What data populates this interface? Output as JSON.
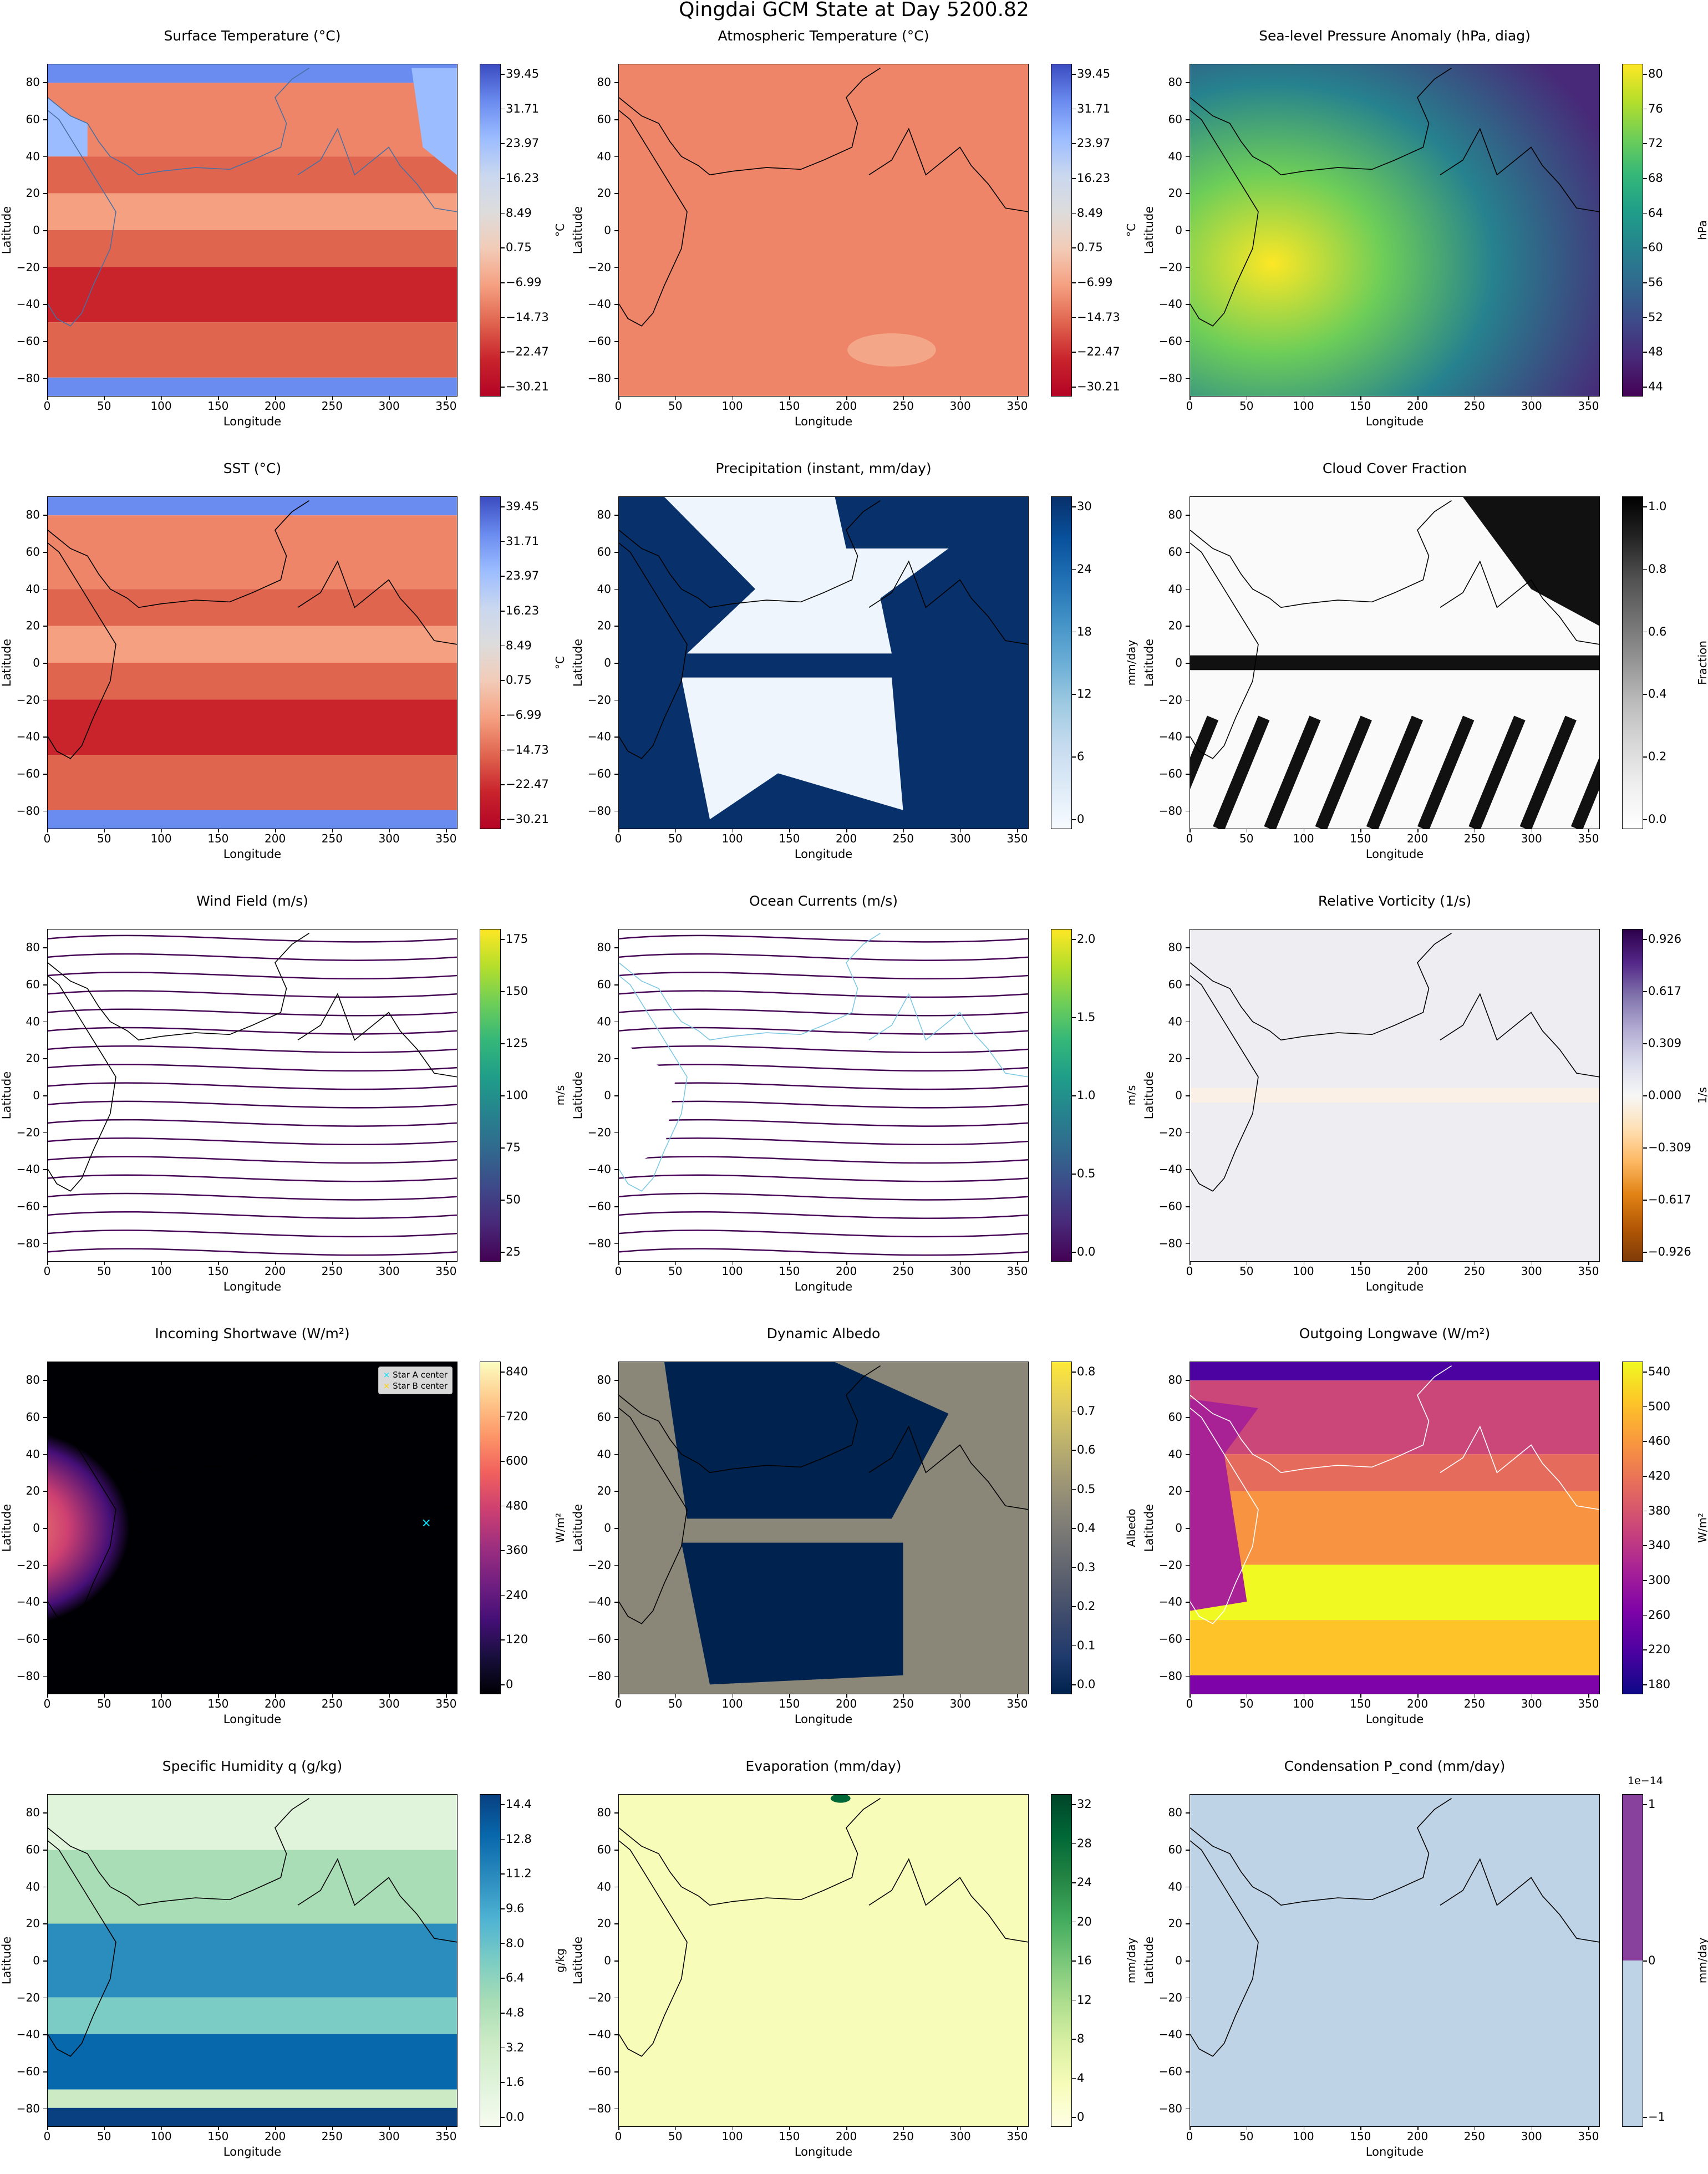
{
  "suptitle": "Qingdai GCM State at Day 5200.82",
  "panels": [
    {
      "title": "Surface Temperature (°C)",
      "xlabel": "Longitude",
      "ylabel": "Latitude",
      "cbar_label": "°C",
      "cbar_ticks": [
        "39.45",
        "31.71",
        "23.97",
        "16.23",
        "8.49",
        "0.75",
        "−6.99",
        "−14.73",
        "−22.47",
        "−30.21"
      ],
      "cmap": "coolwarm"
    },
    {
      "title": "Atmospheric Temperature (°C)",
      "xlabel": "Longitude",
      "ylabel": "Latitude",
      "cbar_label": "°C",
      "cbar_ticks": [
        "39.45",
        "31.71",
        "23.97",
        "16.23",
        "8.49",
        "0.75",
        "−6.99",
        "−14.73",
        "−22.47",
        "−30.21"
      ],
      "cmap": "coolwarm"
    },
    {
      "title": "Sea-level Pressure Anomaly (hPa, diag)",
      "xlabel": "Longitude",
      "ylabel": "Latitude",
      "cbar_label": "hPa",
      "cbar_ticks": [
        "80",
        "76",
        "72",
        "68",
        "64",
        "60",
        "56",
        "52",
        "48",
        "44"
      ],
      "cmap": "viridis"
    },
    {
      "title": "SST (°C)",
      "xlabel": "Longitude",
      "ylabel": "Latitude",
      "cbar_label": "°C",
      "cbar_ticks": [
        "39.45",
        "31.71",
        "23.97",
        "16.23",
        "8.49",
        "0.75",
        "−6.99",
        "−14.73",
        "−22.47",
        "−30.21"
      ],
      "cmap": "coolwarm"
    },
    {
      "title": "Precipitation (instant, mm/day)",
      "xlabel": "Longitude",
      "ylabel": "Latitude",
      "cbar_label": "mm/day",
      "cbar_ticks": [
        "30",
        "24",
        "18",
        "12",
        "6",
        "0"
      ],
      "cmap": "blues"
    },
    {
      "title": "Cloud Cover Fraction",
      "xlabel": "Longitude",
      "ylabel": "Latitude",
      "cbar_label": "Fraction",
      "cbar_ticks": [
        "1.0",
        "0.8",
        "0.6",
        "0.4",
        "0.2",
        "0.0"
      ],
      "cmap": "greys"
    },
    {
      "title": "Wind Field (m/s)",
      "xlabel": "Longitude",
      "ylabel": "Latitude",
      "cbar_label": "m/s",
      "cbar_ticks": [
        "175",
        "150",
        "125",
        "100",
        "75",
        "50",
        "25"
      ],
      "cmap": "viridis"
    },
    {
      "title": "Ocean Currents (m/s)",
      "xlabel": "Longitude",
      "ylabel": "Latitude",
      "cbar_label": "m/s",
      "cbar_ticks": [
        "2.0",
        "1.5",
        "1.0",
        "0.5",
        "0.0"
      ],
      "cmap": "viridis"
    },
    {
      "title": "Relative Vorticity (1/s)",
      "xlabel": "Longitude",
      "ylabel": "Latitude",
      "cbar_label": "1/s",
      "cbar_ticks": [
        "0.926",
        "0.617",
        "0.309",
        "0.000",
        "−0.309",
        "−0.617",
        "−0.926"
      ],
      "cmap": "puor"
    },
    {
      "title": "Incoming Shortwave (W/m²)",
      "xlabel": "Longitude",
      "ylabel": "Latitude",
      "cbar_label": "W/m²",
      "cbar_ticks": [
        "840",
        "720",
        "600",
        "480",
        "360",
        "240",
        "120",
        "0"
      ],
      "cmap": "magma",
      "legend": [
        "Star A center",
        "Star B center"
      ]
    },
    {
      "title": "Dynamic Albedo",
      "xlabel": "Longitude",
      "ylabel": "Latitude",
      "cbar_label": "Albedo",
      "cbar_ticks": [
        "0.8",
        "0.7",
        "0.6",
        "0.5",
        "0.4",
        "0.3",
        "0.2",
        "0.1",
        "0.0"
      ],
      "cmap": "cividis"
    },
    {
      "title": "Outgoing Longwave (W/m²)",
      "xlabel": "Longitude",
      "ylabel": "Latitude",
      "cbar_label": "W/m²",
      "cbar_ticks": [
        "540",
        "500",
        "460",
        "420",
        "380",
        "340",
        "300",
        "260",
        "220",
        "180"
      ],
      "cmap": "plasma"
    },
    {
      "title": "Specific Humidity q (g/kg)",
      "xlabel": "Longitude",
      "ylabel": "Latitude",
      "cbar_label": "g/kg",
      "cbar_ticks": [
        "14.4",
        "12.8",
        "11.2",
        "9.6",
        "8.0",
        "6.4",
        "4.8",
        "3.2",
        "1.6",
        "0.0"
      ],
      "cmap": "gnbu"
    },
    {
      "title": "Evaporation (mm/day)",
      "xlabel": "Longitude",
      "ylabel": "Latitude",
      "cbar_label": "mm/day",
      "cbar_ticks": [
        "32",
        "28",
        "24",
        "20",
        "16",
        "12",
        "8",
        "4",
        "0"
      ],
      "cmap": "ylgn"
    },
    {
      "title": "Condensation P_cond (mm/day)",
      "xlabel": "Longitude",
      "ylabel": "Latitude",
      "cbar_label": "mm/day",
      "cbar_ticks": [
        "1",
        "0",
        "−1"
      ],
      "cmap": "bupu",
      "sci_exponent": "1e−14"
    }
  ],
  "chart_data": {
    "type": "heatmap",
    "grid": {
      "rows": 5,
      "cols": 3
    },
    "x_ticks": [
      "0",
      "50",
      "100",
      "150",
      "200",
      "250",
      "300",
      "350"
    ],
    "y_ticks": [
      "80",
      "60",
      "40",
      "20",
      "0",
      "−20",
      "−40",
      "−60",
      "−80"
    ],
    "xlim": [
      0,
      360
    ],
    "ylim": [
      -90,
      90
    ],
    "colors": {
      "coolwarm_hot": "#c9242c",
      "coolwarm_warm": "#ee8468",
      "coolwarm_cool": "#9bbcff",
      "precip_dark": "#08306b",
      "precip_light": "#eef5fc",
      "vort_bg": "#eeeef2",
      "cond_bg": "#bfd3e6",
      "cond_top": "#88419d"
    }
  }
}
